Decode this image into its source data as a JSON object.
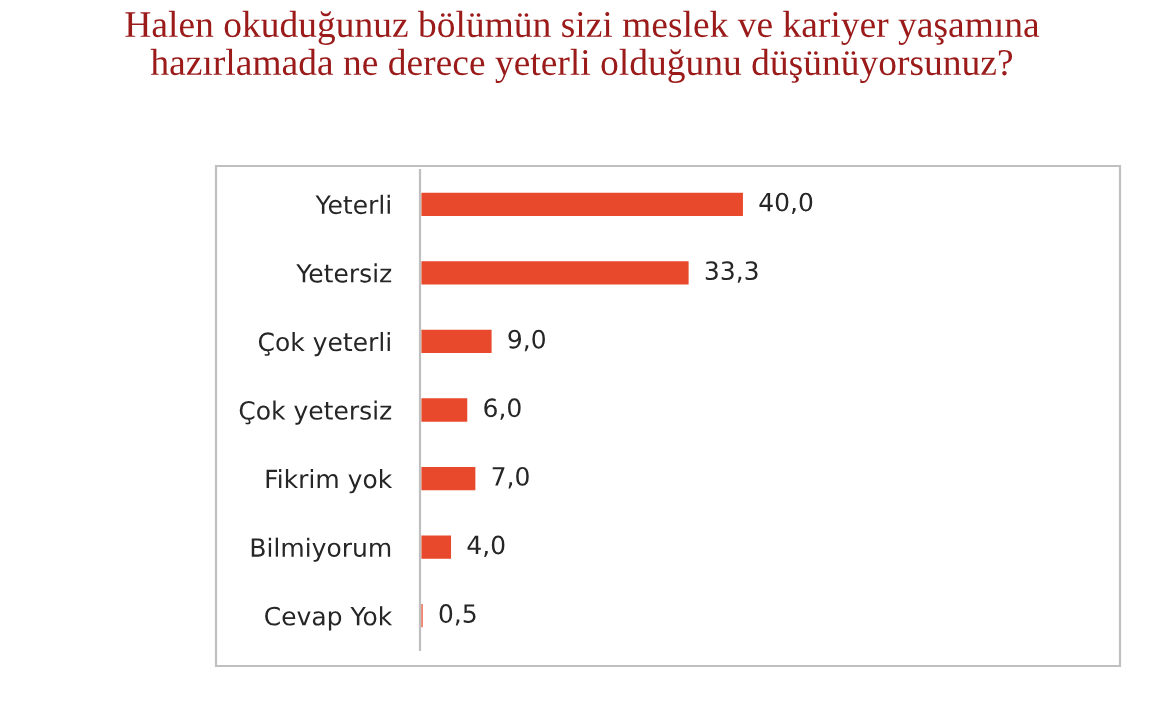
{
  "chart_data": {
    "type": "bar",
    "orientation": "horizontal",
    "title": "Halen okuduğunuz bölümün sizi meslek ve kariyer yaşamına\nhazırlamada ne derece yeterli olduğunu düşünüyorsunuz?",
    "categories": [
      "Yeterli",
      "Yetersiz",
      "Çok yeterli",
      "Çok yetersiz",
      "Fikrim yok",
      "Bilmiyorum",
      "Cevap Yok"
    ],
    "values": [
      40.0,
      33.3,
      9.0,
      6.0,
      7.0,
      4.0,
      0.5
    ],
    "value_labels": [
      "40,0",
      "33,3",
      "9,0",
      "6,0",
      "7,0",
      "4,0",
      "0,5"
    ],
    "color": "#e8482b",
    "grid": false,
    "legend": false,
    "tick_labels": "y"
  }
}
